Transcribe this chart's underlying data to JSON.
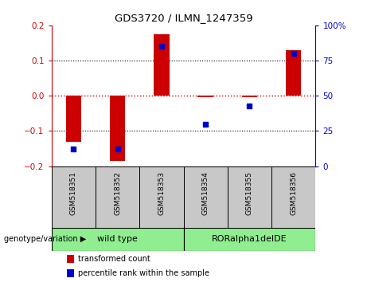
{
  "title": "GDS3720 / ILMN_1247359",
  "samples": [
    "GSM518351",
    "GSM518352",
    "GSM518353",
    "GSM518354",
    "GSM518355",
    "GSM518356"
  ],
  "red_values": [
    -0.13,
    -0.185,
    0.175,
    -0.005,
    -0.005,
    0.13
  ],
  "blue_values_pct": [
    12,
    12,
    85,
    30,
    43,
    80
  ],
  "ylim_left": [
    -0.2,
    0.2
  ],
  "ylim_right": [
    0,
    100
  ],
  "yticks_left": [
    -0.2,
    -0.1,
    0.0,
    0.1,
    0.2
  ],
  "yticks_right": [
    0,
    25,
    50,
    75,
    100
  ],
  "ytick_labels_right": [
    "0",
    "25",
    "50",
    "75",
    "100%"
  ],
  "hlines_dotted": [
    0.1,
    -0.1
  ],
  "hline_zero_color": "#CC0000",
  "red_color": "#CC0000",
  "blue_color": "#0000CC",
  "bar_width": 0.35,
  "tick_header_bg": "#C8C8C8",
  "group_bg_color": "#90EE90",
  "wild_type_label": "wild type",
  "ror_label": "RORalpha1delDE",
  "genotype_label": "genotype/variation ▶",
  "legend_items": [
    {
      "label": "transformed count",
      "color": "#CC0000"
    },
    {
      "label": "percentile rank within the sample",
      "color": "#0000CC"
    }
  ],
  "plot_bg": "#FFFFFF",
  "figure_bg": "#FFFFFF",
  "wild_type_samples": 3,
  "ror_samples": 3
}
